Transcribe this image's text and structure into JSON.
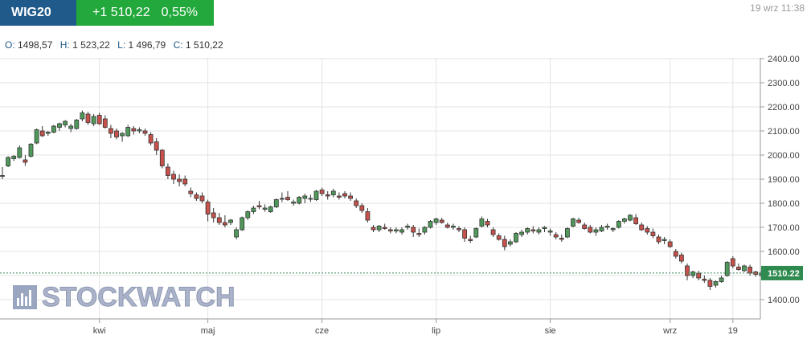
{
  "header": {
    "ticker": "WIG20",
    "change_value": "+1 510,22",
    "change_percent": "0,55%",
    "timestamp": "19 wrz 11:38",
    "colors": {
      "ticker_bg": "#1f5a8a",
      "change_bg": "#22a83b"
    }
  },
  "ohlc": {
    "open_label": "O:",
    "open": "1498,57",
    "high_label": "H:",
    "high": "1 523,22",
    "low_label": "L:",
    "low": "1 496,79",
    "close_label": "C:",
    "close": "1 510,22"
  },
  "watermark": {
    "text": "STOCKWATCH"
  },
  "chart_data": {
    "type": "candlestick",
    "ylim": [
      1320,
      2400
    ],
    "y_ticks": [
      1400,
      1500,
      1600,
      1700,
      1800,
      1900,
      2000,
      2100,
      2200,
      2300,
      2400
    ],
    "y_tick_labels": [
      "1400.00",
      "1500.00",
      "1600.00",
      "1700.00",
      "1800.00",
      "1900.00",
      "2000.00",
      "2100.00",
      "2200.00",
      "2300.00",
      "2400.00"
    ],
    "x_ticks": [
      {
        "label": "kwi",
        "index": 17
      },
      {
        "label": "maj",
        "index": 36
      },
      {
        "label": "cze",
        "index": 56
      },
      {
        "label": "lip",
        "index": 76
      },
      {
        "label": "sie",
        "index": 96
      },
      {
        "label": "wrz",
        "index": 117
      },
      {
        "label": "19",
        "index": 128
      }
    ],
    "current_price": 1510.22,
    "current_price_label": "1510.22",
    "colors": {
      "up": "#4f9a5a",
      "down": "#c8514b",
      "grid": "#e3e3e3",
      "price_line": "#3d8d5e",
      "price_tag": "#2f8a4f"
    },
    "candles": [
      [
        1915,
        1950,
        1900,
        1915
      ],
      [
        1955,
        1995,
        1950,
        1990
      ],
      [
        1985,
        2000,
        1975,
        1995
      ],
      [
        1990,
        2040,
        1985,
        2030
      ],
      [
        1980,
        2000,
        1955,
        1970
      ],
      [
        1995,
        2050,
        1990,
        2045
      ],
      [
        2050,
        2110,
        2045,
        2105
      ],
      [
        2100,
        2120,
        2075,
        2080
      ],
      [
        2090,
        2100,
        2080,
        2095
      ],
      [
        2095,
        2125,
        2090,
        2120
      ],
      [
        2115,
        2135,
        2100,
        2130
      ],
      [
        2125,
        2145,
        2115,
        2140
      ],
      [
        2110,
        2130,
        2095,
        2120
      ],
      [
        2110,
        2150,
        2105,
        2145
      ],
      [
        2150,
        2185,
        2140,
        2175
      ],
      [
        2170,
        2180,
        2125,
        2135
      ],
      [
        2130,
        2170,
        2120,
        2160
      ],
      [
        2165,
        2175,
        2125,
        2130
      ],
      [
        2150,
        2165,
        2110,
        2115
      ],
      [
        2110,
        2125,
        2070,
        2090
      ],
      [
        2100,
        2110,
        2065,
        2075
      ],
      [
        2080,
        2095,
        2055,
        2090
      ],
      [
        2080,
        2125,
        2075,
        2115
      ],
      [
        2110,
        2120,
        2085,
        2100
      ],
      [
        2100,
        2115,
        2090,
        2105
      ],
      [
        2100,
        2110,
        2080,
        2090
      ],
      [
        2085,
        2095,
        2040,
        2050
      ],
      [
        2055,
        2070,
        2000,
        2020
      ],
      [
        2020,
        2025,
        1945,
        1955
      ],
      [
        1950,
        1965,
        1900,
        1915
      ],
      [
        1920,
        1935,
        1880,
        1900
      ],
      [
        1900,
        1920,
        1870,
        1890
      ],
      [
        1900,
        1915,
        1870,
        1880
      ],
      [
        1850,
        1865,
        1825,
        1840
      ],
      [
        1835,
        1845,
        1810,
        1820
      ],
      [
        1830,
        1845,
        1800,
        1810
      ],
      [
        1805,
        1815,
        1725,
        1755
      ],
      [
        1760,
        1780,
        1720,
        1740
      ],
      [
        1740,
        1760,
        1710,
        1720
      ],
      [
        1720,
        1750,
        1700,
        1710
      ],
      [
        1720,
        1735,
        1710,
        1730
      ],
      [
        1660,
        1700,
        1650,
        1690
      ],
      [
        1690,
        1745,
        1685,
        1740
      ],
      [
        1740,
        1770,
        1730,
        1765
      ],
      [
        1765,
        1790,
        1755,
        1780
      ],
      [
        1790,
        1810,
        1775,
        1785
      ],
      [
        1775,
        1795,
        1765,
        1780
      ],
      [
        1765,
        1790,
        1760,
        1785
      ],
      [
        1785,
        1820,
        1780,
        1815
      ],
      [
        1820,
        1845,
        1805,
        1820
      ],
      [
        1825,
        1850,
        1810,
        1815
      ],
      [
        1800,
        1815,
        1790,
        1805
      ],
      [
        1800,
        1830,
        1795,
        1825
      ],
      [
        1820,
        1840,
        1800,
        1830
      ],
      [
        1820,
        1835,
        1805,
        1820
      ],
      [
        1815,
        1855,
        1810,
        1850
      ],
      [
        1855,
        1865,
        1830,
        1840
      ],
      [
        1835,
        1850,
        1815,
        1830
      ],
      [
        1835,
        1860,
        1825,
        1850
      ],
      [
        1830,
        1845,
        1815,
        1825
      ],
      [
        1840,
        1850,
        1820,
        1830
      ],
      [
        1830,
        1845,
        1810,
        1820
      ],
      [
        1810,
        1820,
        1780,
        1790
      ],
      [
        1790,
        1800,
        1760,
        1770
      ],
      [
        1765,
        1780,
        1720,
        1730
      ],
      [
        1700,
        1710,
        1680,
        1690
      ],
      [
        1690,
        1710,
        1680,
        1705
      ],
      [
        1700,
        1715,
        1690,
        1695
      ],
      [
        1690,
        1700,
        1675,
        1685
      ],
      [
        1685,
        1700,
        1675,
        1690
      ],
      [
        1680,
        1700,
        1670,
        1690
      ],
      [
        1700,
        1715,
        1690,
        1705
      ],
      [
        1700,
        1710,
        1660,
        1680
      ],
      [
        1675,
        1695,
        1660,
        1670
      ],
      [
        1680,
        1705,
        1670,
        1700
      ],
      [
        1700,
        1730,
        1695,
        1725
      ],
      [
        1720,
        1740,
        1710,
        1735
      ],
      [
        1730,
        1740,
        1715,
        1720
      ],
      [
        1710,
        1720,
        1695,
        1700
      ],
      [
        1700,
        1715,
        1690,
        1705
      ],
      [
        1695,
        1705,
        1680,
        1690
      ],
      [
        1690,
        1700,
        1640,
        1655
      ],
      [
        1650,
        1665,
        1635,
        1645
      ],
      [
        1660,
        1700,
        1655,
        1695
      ],
      [
        1705,
        1745,
        1700,
        1735
      ],
      [
        1725,
        1735,
        1700,
        1710
      ],
      [
        1690,
        1700,
        1660,
        1670
      ],
      [
        1665,
        1675,
        1645,
        1650
      ],
      [
        1650,
        1665,
        1605,
        1620
      ],
      [
        1630,
        1650,
        1620,
        1640
      ],
      [
        1640,
        1680,
        1635,
        1675
      ],
      [
        1670,
        1690,
        1660,
        1680
      ],
      [
        1680,
        1700,
        1670,
        1695
      ],
      [
        1690,
        1705,
        1675,
        1685
      ],
      [
        1680,
        1700,
        1670,
        1690
      ],
      [
        1695,
        1705,
        1680,
        1700
      ],
      [
        1680,
        1695,
        1665,
        1685
      ],
      [
        1670,
        1680,
        1650,
        1660
      ],
      [
        1655,
        1670,
        1640,
        1650
      ],
      [
        1660,
        1700,
        1655,
        1695
      ],
      [
        1705,
        1740,
        1700,
        1735
      ],
      [
        1730,
        1740,
        1715,
        1720
      ],
      [
        1710,
        1720,
        1690,
        1695
      ],
      [
        1700,
        1710,
        1675,
        1680
      ],
      [
        1680,
        1700,
        1665,
        1690
      ],
      [
        1685,
        1710,
        1680,
        1700
      ],
      [
        1700,
        1715,
        1690,
        1705
      ],
      [
        1690,
        1700,
        1680,
        1695
      ],
      [
        1700,
        1730,
        1695,
        1725
      ],
      [
        1725,
        1740,
        1715,
        1735
      ],
      [
        1730,
        1755,
        1725,
        1750
      ],
      [
        1740,
        1755,
        1710,
        1715
      ],
      [
        1710,
        1720,
        1685,
        1690
      ],
      [
        1695,
        1705,
        1670,
        1680
      ],
      [
        1680,
        1695,
        1655,
        1665
      ],
      [
        1660,
        1670,
        1630,
        1640
      ],
      [
        1645,
        1660,
        1630,
        1650
      ],
      [
        1640,
        1650,
        1615,
        1620
      ],
      [
        1600,
        1610,
        1570,
        1580
      ],
      [
        1585,
        1595,
        1550,
        1560
      ],
      [
        1540,
        1550,
        1480,
        1500
      ],
      [
        1500,
        1520,
        1490,
        1515
      ],
      [
        1510,
        1520,
        1480,
        1490
      ],
      [
        1485,
        1500,
        1470,
        1480
      ],
      [
        1480,
        1490,
        1440,
        1455
      ],
      [
        1460,
        1480,
        1450,
        1475
      ],
      [
        1475,
        1500,
        1470,
        1490
      ],
      [
        1500,
        1560,
        1495,
        1555
      ],
      [
        1570,
        1580,
        1530,
        1540
      ],
      [
        1535,
        1550,
        1520,
        1525
      ],
      [
        1520,
        1545,
        1515,
        1540
      ],
      [
        1535,
        1545,
        1500,
        1510
      ],
      [
        1515,
        1520,
        1495,
        1505
      ],
      [
        1500,
        1520,
        1495,
        1510
      ]
    ]
  }
}
